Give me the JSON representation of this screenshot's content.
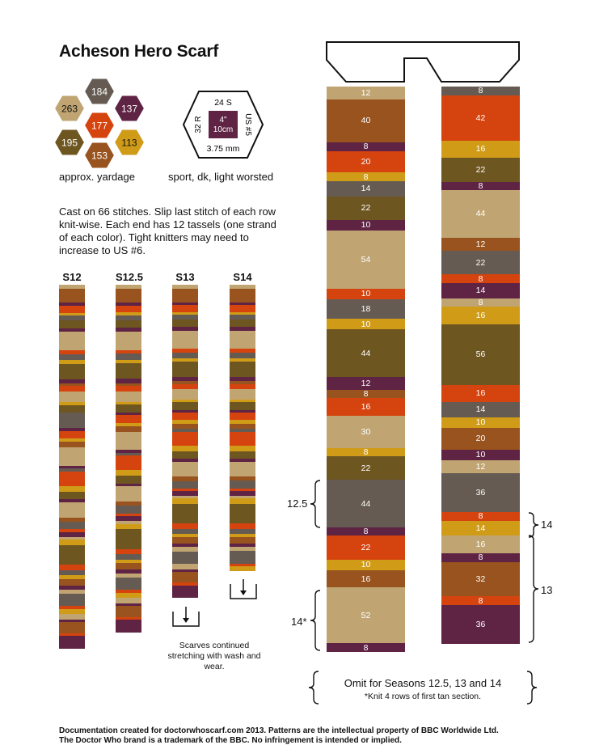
{
  "title": "Acheson Hero Scarf",
  "colors": {
    "tan": "#c0a573",
    "rust": "#98531e",
    "plum": "#5f2344",
    "orange": "#d5430e",
    "gold": "#d09c18",
    "grey": "#655b52",
    "olive": "#6e5621",
    "mustard": "#c99a1f"
  },
  "yardage": {
    "label": "approx. yardage",
    "hexes": [
      {
        "value": "184",
        "color": "grey"
      },
      {
        "value": "263",
        "color": "tan"
      },
      {
        "value": "177",
        "color": "orange"
      },
      {
        "value": "137",
        "color": "plum"
      },
      {
        "value": "195",
        "color": "olive"
      },
      {
        "value": "113",
        "color": "gold"
      },
      {
        "value": "153",
        "color": "rust"
      }
    ]
  },
  "gauge": {
    "top": "24 S",
    "left": "32 R",
    "center_line1": "4\"",
    "center_line2": "10cm",
    "right": "US #5",
    "bottom": "3.75 mm",
    "label": "sport, dk, light worsted"
  },
  "instructions": "Cast on 66 stitches. Slip last stitch of each row knit-wise. Each end has 12 tassels (one strand of each color). Tight knitters may need to increase to US #6.",
  "seasons": [
    "S12",
    "S12.5",
    "S13",
    "S14"
  ],
  "note_continued": "Scarves continued stretching with wash and wear.",
  "scarf": {
    "left": [
      {
        "rows": "12",
        "color": "tan"
      },
      {
        "rows": "40",
        "color": "rust"
      },
      {
        "rows": "8",
        "color": "plum"
      },
      {
        "rows": "20",
        "color": "orange"
      },
      {
        "rows": "8",
        "color": "gold"
      },
      {
        "rows": "14",
        "color": "grey"
      },
      {
        "rows": "22",
        "color": "olive"
      },
      {
        "rows": "10",
        "color": "plum"
      },
      {
        "rows": "54",
        "color": "tan"
      },
      {
        "rows": "10",
        "color": "orange"
      },
      {
        "rows": "18",
        "color": "grey"
      },
      {
        "rows": "10",
        "color": "gold"
      },
      {
        "rows": "44",
        "color": "olive"
      },
      {
        "rows": "12",
        "color": "plum"
      },
      {
        "rows": "8",
        "color": "rust"
      },
      {
        "rows": "16",
        "color": "orange"
      },
      {
        "rows": "30",
        "color": "tan"
      },
      {
        "rows": "8",
        "color": "gold"
      },
      {
        "rows": "22",
        "color": "olive"
      },
      {
        "rows": "44",
        "color": "grey"
      },
      {
        "rows": "8",
        "color": "plum"
      },
      {
        "rows": "22",
        "color": "orange"
      },
      {
        "rows": "10",
        "color": "gold"
      },
      {
        "rows": "16",
        "color": "rust"
      },
      {
        "rows": "52",
        "color": "tan"
      },
      {
        "rows": "8",
        "color": "plum"
      }
    ],
    "right": [
      {
        "rows": "8",
        "color": "grey"
      },
      {
        "rows": "42",
        "color": "orange"
      },
      {
        "rows": "16",
        "color": "gold"
      },
      {
        "rows": "22",
        "color": "olive"
      },
      {
        "rows": "8",
        "color": "plum"
      },
      {
        "rows": "44",
        "color": "tan"
      },
      {
        "rows": "12",
        "color": "rust"
      },
      {
        "rows": "22",
        "color": "grey"
      },
      {
        "rows": "8",
        "color": "orange"
      },
      {
        "rows": "14",
        "color": "plum"
      },
      {
        "rows": "8",
        "color": "tan"
      },
      {
        "rows": "16",
        "color": "gold"
      },
      {
        "rows": "56",
        "color": "olive"
      },
      {
        "rows": "16",
        "color": "orange"
      },
      {
        "rows": "14",
        "color": "grey"
      },
      {
        "rows": "10",
        "color": "gold"
      },
      {
        "rows": "20",
        "color": "rust"
      },
      {
        "rows": "10",
        "color": "plum"
      },
      {
        "rows": "12",
        "color": "tan"
      },
      {
        "rows": "36",
        "color": "grey"
      },
      {
        "rows": "8",
        "color": "orange"
      },
      {
        "rows": "14",
        "color": "gold"
      },
      {
        "rows": "16",
        "color": "tan"
      },
      {
        "rows": "8",
        "color": "plum"
      },
      {
        "rows": "32",
        "color": "rust"
      },
      {
        "rows": "8",
        "color": "orange"
      },
      {
        "rows": "36",
        "color": "plum"
      }
    ]
  },
  "markers": {
    "left_125": "12.5",
    "left_14star": "14*",
    "right_14": "14",
    "right_13": "13"
  },
  "omit": {
    "line1": "Omit for Seasons 12.5, 13 and 14",
    "line2": "*Knit 4 rows of first tan section."
  },
  "footer": {
    "line1": "Documentation created for doctorwhoscarf.com 2013. Patterns are the intellectual property of BBC Worldwide Ltd.",
    "line2": "The Doctor Who brand is a trademark of the BBC. No infringement is intended or implied."
  }
}
